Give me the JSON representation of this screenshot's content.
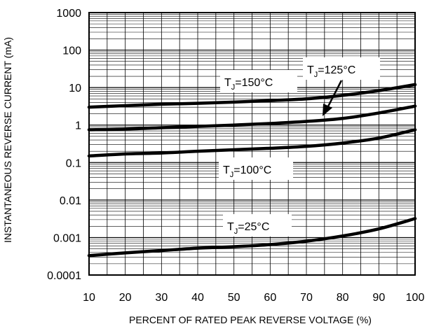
{
  "chart_data": {
    "type": "line",
    "ylog": true,
    "xlabel": "PERCENT OF RATED PEAK REVERSE VOLTAGE (%)",
    "ylabel": "INSTANTANEOUS REVERSE CURRENT (mA)",
    "xlim": [
      10,
      100
    ],
    "ylim": [
      0.0001,
      1000
    ],
    "grid": true,
    "xticks": [
      10,
      20,
      30,
      40,
      50,
      60,
      70,
      80,
      90,
      100
    ],
    "xtick_labels": [
      "10",
      "20",
      "30",
      "40",
      "50",
      "60",
      "70",
      "80",
      "90",
      "100"
    ],
    "yticks": [
      1000,
      100,
      10,
      1,
      0.1,
      0.01,
      0.001,
      0.0001
    ],
    "ytick_labels": [
      "1000",
      "100",
      "10",
      "1",
      "0.1",
      "0.01",
      "0.001",
      "0.0001"
    ],
    "series": [
      {
        "name": "TJ=150°C",
        "label_main": "T",
        "label_sub": "J",
        "label_rest": "=150°C",
        "x": [
          10,
          20,
          30,
          40,
          50,
          60,
          70,
          80,
          90,
          100
        ],
        "y": [
          3.0,
          3.3,
          3.6,
          3.8,
          4.1,
          4.5,
          5.0,
          6.2,
          8.3,
          12.0
        ]
      },
      {
        "name": "TJ=125°C",
        "label_main": "T",
        "label_sub": "J",
        "label_rest": "=125°C",
        "x": [
          10,
          20,
          30,
          40,
          50,
          60,
          70,
          80,
          90,
          100
        ],
        "y": [
          0.75,
          0.78,
          0.85,
          0.92,
          1.0,
          1.1,
          1.25,
          1.5,
          2.1,
          3.2
        ]
      },
      {
        "name": "TJ=100°C",
        "label_main": "T",
        "label_sub": "J",
        "label_rest": "=100°C",
        "x": [
          10,
          20,
          30,
          40,
          50,
          60,
          70,
          80,
          90,
          100
        ],
        "y": [
          0.15,
          0.17,
          0.18,
          0.2,
          0.22,
          0.24,
          0.27,
          0.33,
          0.45,
          0.75
        ]
      },
      {
        "name": "TJ=25°C",
        "label_main": "T",
        "label_sub": "J",
        "label_rest": "=25°C",
        "x": [
          10,
          20,
          30,
          40,
          50,
          60,
          70,
          80,
          90,
          100
        ],
        "y": [
          0.00033,
          0.00039,
          0.00045,
          0.00052,
          0.00057,
          0.00065,
          0.0008,
          0.0011,
          0.0017,
          0.0032
        ]
      }
    ]
  }
}
